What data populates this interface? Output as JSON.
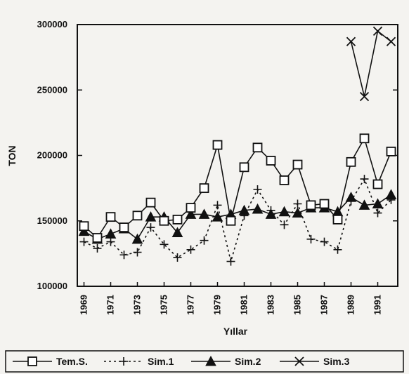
{
  "chart_data": {
    "type": "line",
    "ylabel": "TON",
    "xlabel": "Yıllar",
    "xlim": [
      1968.5,
      1992.5
    ],
    "ylim": [
      100000,
      300000
    ],
    "y_ticks": [
      100000,
      150000,
      200000,
      250000,
      300000
    ],
    "y_tick_labels": [
      "100000",
      "150000",
      "200000",
      "250000",
      "300000"
    ],
    "x_tick_labels": [
      "1969",
      "1971",
      "1973",
      "1975",
      "1977",
      "1979",
      "1981",
      "1983",
      "1985",
      "1987",
      "1989",
      "1991"
    ],
    "x_ticks": [
      1969,
      1971,
      1973,
      1975,
      1977,
      1979,
      1981,
      1983,
      1985,
      1987,
      1989,
      1991
    ],
    "grid": false,
    "legend_position": "bottom",
    "series": [
      {
        "name": "Tem.S.",
        "marker": "square-open",
        "line": "solid",
        "x": [
          1969,
          1970,
          1971,
          1972,
          1973,
          1974,
          1975,
          1976,
          1977,
          1978,
          1979,
          1980,
          1981,
          1982,
          1983,
          1984,
          1985,
          1986,
          1987,
          1988,
          1989,
          1990,
          1991,
          1992
        ],
        "y": [
          146000,
          137000,
          153000,
          145000,
          154000,
          164000,
          150000,
          151000,
          160000,
          175000,
          208000,
          150000,
          191000,
          206000,
          196000,
          181000,
          193000,
          162000,
          163000,
          151000,
          195000,
          213000,
          178000,
          203000
        ]
      },
      {
        "name": "Sim.1",
        "marker": "plus",
        "line": "dashed",
        "x": [
          1969,
          1970,
          1971,
          1972,
          1973,
          1974,
          1975,
          1976,
          1977,
          1978,
          1979,
          1980,
          1981,
          1982,
          1983,
          1984,
          1985,
          1986,
          1987,
          1988,
          1989,
          1990,
          1991,
          1992
        ],
        "y": [
          134000,
          129000,
          134000,
          124000,
          126000,
          145000,
          132000,
          122000,
          128000,
          135000,
          162000,
          119000,
          154000,
          174000,
          158000,
          147000,
          163000,
          136000,
          134000,
          128000,
          165000,
          182000,
          156000,
          166000
        ]
      },
      {
        "name": "Sim.2",
        "marker": "triangle-filled",
        "line": "solid",
        "x": [
          1969,
          1970,
          1971,
          1972,
          1973,
          1974,
          1975,
          1976,
          1977,
          1978,
          1979,
          1980,
          1981,
          1982,
          1983,
          1984,
          1985,
          1986,
          1987,
          1988,
          1989,
          1990,
          1991,
          1992
        ],
        "y": [
          142000,
          136000,
          140000,
          144000,
          136000,
          153000,
          153000,
          141000,
          155000,
          155000,
          153000,
          155000,
          158000,
          159000,
          155000,
          157000,
          156000,
          160000,
          160000,
          157000,
          168000,
          162000,
          163000,
          170000
        ]
      },
      {
        "name": "Sim.3",
        "marker": "x",
        "line": "solid",
        "x": [
          1989,
          1990,
          1991,
          1992
        ],
        "y": [
          287000,
          245000,
          295000,
          287000
        ]
      }
    ]
  }
}
